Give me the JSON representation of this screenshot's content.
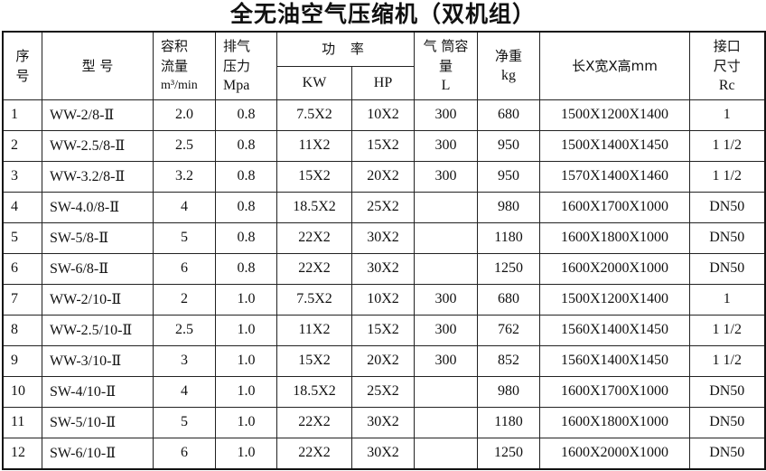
{
  "title": "全无油空气压缩机（双机组）",
  "headers": {
    "no": "序号",
    "model": "型 号",
    "flow": "容积流量",
    "flow_unit": "m³/min",
    "pressure": "排气压力",
    "pressure_unit": "Mpa",
    "power": "功 率",
    "kw": "KW",
    "hp": "HP",
    "tank": "气 筒容 量",
    "tank_unit": "L",
    "weight": "净重",
    "weight_unit": "kg",
    "dims": "长X宽X高mm",
    "port": "接口尺寸",
    "port_unit": "Rc"
  },
  "rows": [
    [
      "1",
      "WW-2/8-Ⅱ",
      "2.0",
      "0.8",
      "7.5X2",
      "10X2",
      "300",
      "680",
      "1500X1200X1400",
      "1"
    ],
    [
      "2",
      "WW-2.5/8-Ⅱ",
      "2.5",
      "0.8",
      "11X2",
      "15X2",
      "300",
      "950",
      "1500X1400X1450",
      "1 1/2"
    ],
    [
      "3",
      "WW-3.2/8-Ⅱ",
      "3.2",
      "0.8",
      "15X2",
      "20X2",
      "300",
      "950",
      "1570X1400X1460",
      "1 1/2"
    ],
    [
      "4",
      "SW-4.0/8-Ⅱ",
      "4",
      "0.8",
      "18.5X2",
      "25X2",
      "",
      "980",
      "1600X1700X1000",
      "DN50"
    ],
    [
      "5",
      "SW-5/8-Ⅱ",
      "5",
      "0.8",
      "22X2",
      "30X2",
      "",
      "1180",
      "1600X1800X1000",
      "DN50"
    ],
    [
      "6",
      "SW-6/8-Ⅱ",
      "6",
      "0.8",
      "22X2",
      "30X2",
      "",
      "1250",
      "1600X2000X1000",
      "DN50"
    ],
    [
      "7",
      "WW-2/10-Ⅱ",
      "2",
      "1.0",
      "7.5X2",
      "10X2",
      "300",
      "680",
      "1500X1200X1400",
      "1"
    ],
    [
      "8",
      "WW-2.5/10-Ⅱ",
      "2.5",
      "1.0",
      "11X2",
      "15X2",
      "300",
      "762",
      "1560X1400X1450",
      "1 1/2"
    ],
    [
      "9",
      "WW-3/10-Ⅱ",
      "3",
      "1.0",
      "15X2",
      "20X2",
      "300",
      "852",
      "1560X1400X1450",
      "1 1/2"
    ],
    [
      "10",
      "SW-4/10-Ⅱ",
      "4",
      "1.0",
      "18.5X2",
      "25X2",
      "",
      "980",
      "1600X1700X1000",
      "DN50"
    ],
    [
      "11",
      "SW-5/10-Ⅱ",
      "5",
      "1.0",
      "22X2",
      "30X2",
      "",
      "1180",
      "1600X1800X1000",
      "DN50"
    ],
    [
      "12",
      "SW-6/10-Ⅱ",
      "6",
      "1.0",
      "22X2",
      "30X2",
      "",
      "1250",
      "1600X2000X1000",
      "DN50"
    ]
  ]
}
